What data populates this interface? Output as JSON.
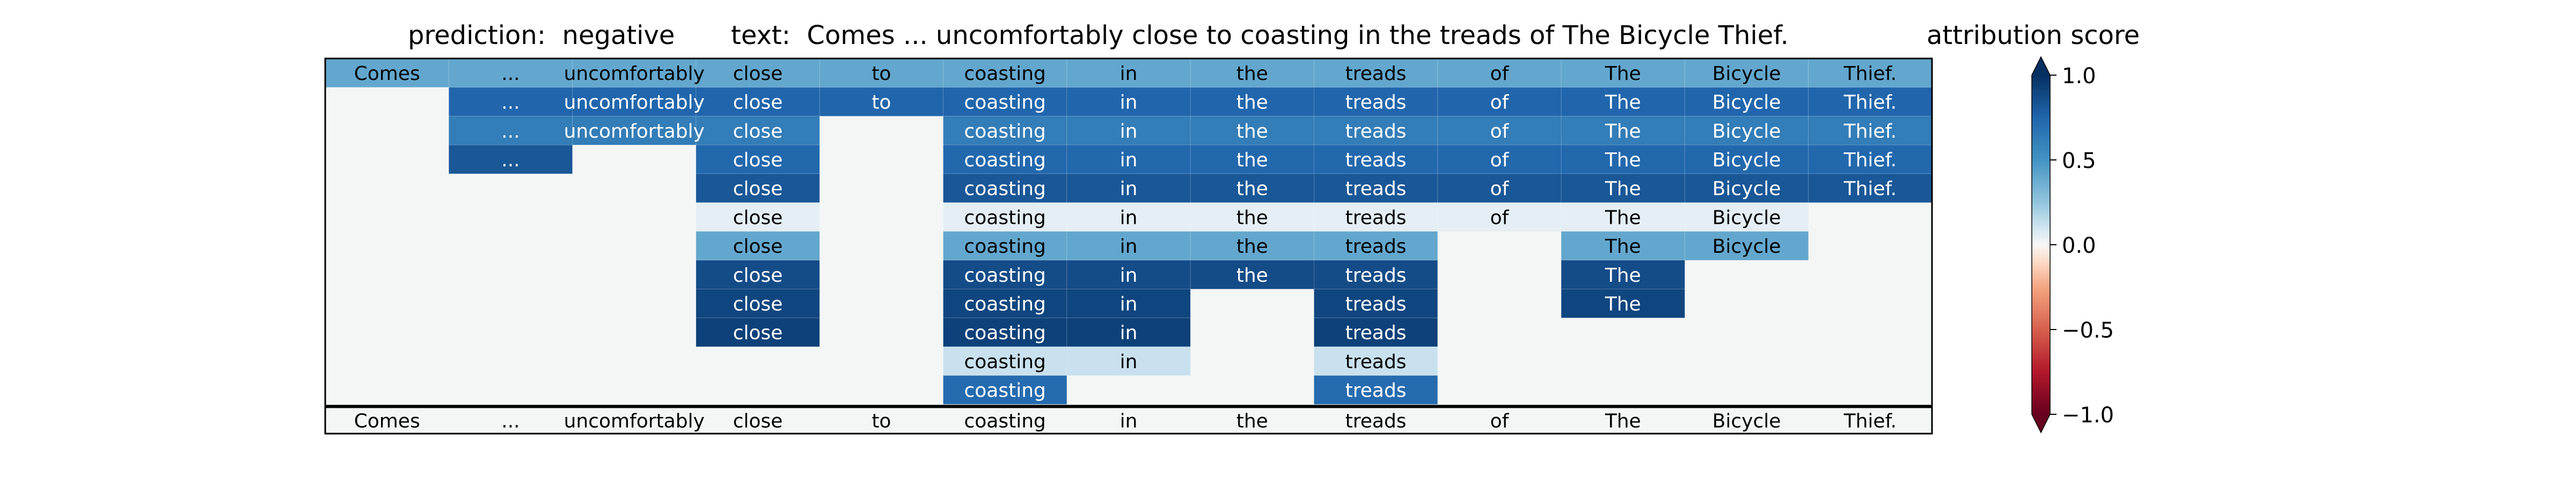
{
  "header": {
    "prediction_label": "prediction:",
    "prediction_value": "negative",
    "text_label": "text:",
    "text_value": "Comes ... uncomfortably close to coasting in the treads of The Bicycle Thief.",
    "colorbar_title": "attribution score"
  },
  "chart_data": {
    "type": "heatmap",
    "tokens": [
      "Comes",
      "...",
      "uncomfortably",
      "close",
      "to",
      "coasting",
      "in",
      "the",
      "treads",
      "of",
      "The",
      "Bicycle",
      "Thief."
    ],
    "rows": [
      [
        0.4,
        0.4,
        0.4,
        0.4,
        0.4,
        0.4,
        0.4,
        0.4,
        0.4,
        0.4,
        0.4,
        0.4,
        0.4
      ],
      [
        null,
        0.75,
        0.75,
        0.75,
        0.75,
        0.75,
        0.75,
        0.75,
        0.75,
        0.75,
        0.75,
        0.75,
        0.75
      ],
      [
        null,
        0.62,
        0.62,
        0.62,
        null,
        0.62,
        0.62,
        0.62,
        0.62,
        0.62,
        0.62,
        0.62,
        0.62
      ],
      [
        null,
        0.82,
        null,
        0.74,
        null,
        0.74,
        0.74,
        0.74,
        0.74,
        0.74,
        0.74,
        0.74,
        0.74
      ],
      [
        null,
        null,
        null,
        0.82,
        null,
        0.82,
        0.82,
        0.82,
        0.82,
        0.82,
        0.82,
        0.82,
        0.82
      ],
      [
        null,
        null,
        null,
        0.05,
        null,
        0.05,
        0.05,
        0.05,
        0.05,
        0.05,
        0.05,
        0.05,
        null
      ],
      [
        null,
        null,
        null,
        0.4,
        null,
        0.4,
        0.4,
        0.4,
        0.4,
        null,
        0.4,
        0.4,
        null
      ],
      [
        null,
        null,
        null,
        0.87,
        null,
        0.87,
        0.87,
        0.87,
        0.87,
        null,
        0.87,
        null,
        null
      ],
      [
        null,
        null,
        null,
        0.9,
        null,
        0.9,
        0.9,
        null,
        0.9,
        null,
        0.9,
        null,
        null
      ],
      [
        null,
        null,
        null,
        0.92,
        null,
        0.92,
        0.92,
        null,
        0.92,
        null,
        null,
        null,
        null
      ],
      [
        null,
        null,
        null,
        null,
        null,
        0.12,
        0.12,
        null,
        0.12,
        null,
        null,
        null,
        null
      ],
      [
        null,
        null,
        null,
        null,
        null,
        0.72,
        null,
        null,
        0.72,
        null,
        null,
        null,
        null
      ]
    ],
    "bottom_row_labels": [
      "Comes",
      "...",
      "uncomfortably",
      "close",
      "to",
      "coasting",
      "in",
      "the",
      "treads",
      "of",
      "The",
      "Bicycle",
      "Thief."
    ],
    "colorbar": {
      "range": [
        -1.0,
        1.0
      ],
      "ticks": [
        1.0,
        0.5,
        0.0,
        -0.5,
        -1.0
      ],
      "tick_labels": [
        "1.0",
        "0.5",
        "0.0",
        "−0.5",
        "−1.0"
      ],
      "colormap": "RdBu",
      "extend": "both"
    },
    "colors": {
      "empty_cell": "#f4f6f6",
      "divider": "#000000",
      "grid": "#ffffff"
    }
  }
}
